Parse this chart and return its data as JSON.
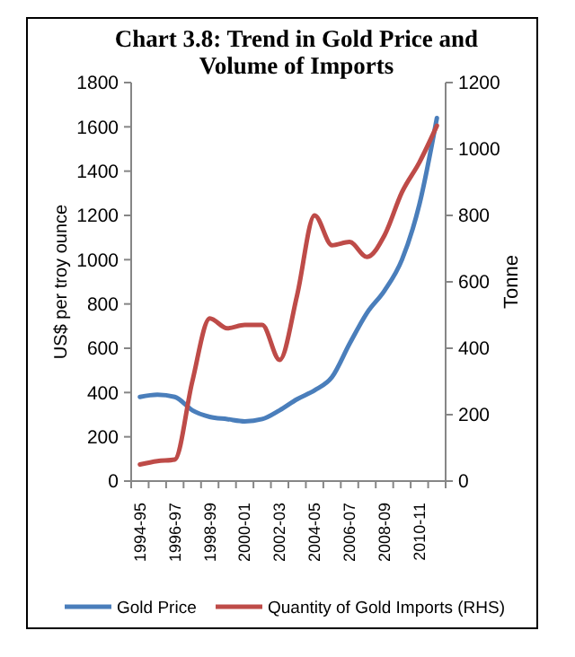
{
  "chart_data": {
    "type": "line",
    "title": "Chart 3.8:  Trend in Gold Price and Volume of Imports",
    "ylabel": "US$ per troy ounce",
    "y2label": "Tonne",
    "categories": [
      "1994-95",
      null,
      "1996-97",
      null,
      "1998-99",
      null,
      "2000-01",
      null,
      "2002-03",
      null,
      "2004-05",
      null,
      "2006-07",
      null,
      "2008-09",
      null,
      "2010-11",
      null
    ],
    "series": [
      {
        "name": "Gold Price",
        "color": "#4a7ebb",
        "values": [
          380,
          390,
          380,
          320,
          290,
          280,
          270,
          280,
          320,
          370,
          410,
          470,
          620,
          760,
          860,
          1000,
          1250,
          1640
        ]
      },
      {
        "name": "Quantity of Gold Imports (RHS)",
        "color": "#be4b48",
        "axis": "y2",
        "values": [
          50,
          60,
          65,
          300,
          490,
          460,
          470,
          470,
          365,
          560,
          800,
          710,
          720,
          675,
          740,
          870,
          960,
          1070
        ]
      }
    ],
    "ylim": [
      0,
      1800
    ],
    "yticks": [
      0,
      200,
      400,
      600,
      800,
      1000,
      1200,
      1400,
      1600,
      1800
    ],
    "y2lim": [
      0,
      1200
    ],
    "y2ticks": [
      0,
      200,
      400,
      600,
      800,
      1000,
      1200
    ],
    "grid": false,
    "legend": "bottom",
    "marker": "none",
    "line_style": "solid"
  }
}
